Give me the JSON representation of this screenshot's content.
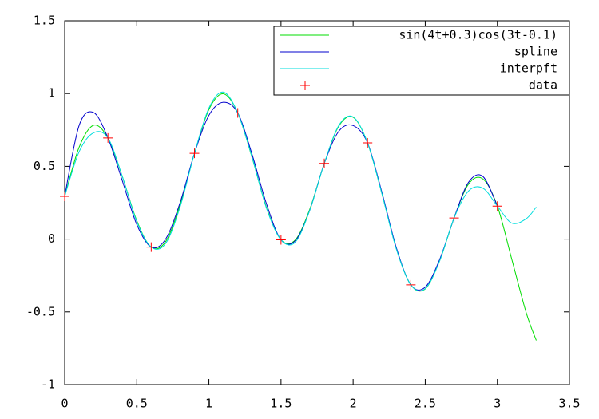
{
  "chart_data": {
    "type": "line",
    "xlim": [
      0,
      3.5
    ],
    "xticks": [
      0,
      0.5,
      1,
      1.5,
      2,
      2.5,
      3,
      3.5
    ],
    "ylim": [
      -1,
      1.5
    ],
    "yticks": [
      -1,
      -0.5,
      0,
      0.5,
      1,
      1.5
    ],
    "legend": "upper right",
    "series": [
      {
        "name": "sin(4t+0.3)cos(3t-0.1)",
        "color": "#00dd00",
        "x": [
          0,
          0.1,
          0.2,
          0.3,
          0.4,
          0.5,
          0.6,
          0.7,
          0.8,
          0.9,
          1,
          1.1,
          1.2,
          1.3,
          1.4,
          1.5,
          1.6,
          1.7,
          1.8,
          1.9,
          2,
          2.1,
          2.2,
          2.3,
          2.4,
          2.5,
          2.6,
          2.7,
          2.8,
          2.9,
          3,
          3.1,
          3.2,
          3.27
        ],
        "values": [
          0.294,
          0.631,
          0.782,
          0.695,
          0.429,
          0.127,
          -0.055,
          -0.017,
          0.234,
          0.589,
          0.89,
          0.998,
          0.867,
          0.558,
          0.215,
          -0.005,
          -0.005,
          0.207,
          0.52,
          0.775,
          0.837,
          0.661,
          0.312,
          -0.065,
          -0.314,
          -0.342,
          -0.148,
          0.145,
          0.378,
          0.413,
          0.227,
          -0.138,
          -0.505,
          -0.696
        ]
      },
      {
        "name": "spline",
        "color": "#0000cc",
        "x": [
          0,
          0.1,
          0.2,
          0.3,
          0.4,
          0.5,
          0.6,
          0.7,
          0.8,
          0.9,
          1,
          1.1,
          1.2,
          1.3,
          1.4,
          1.5,
          1.6,
          1.7,
          1.8,
          1.9,
          2,
          2.1,
          2.2,
          2.3,
          2.4,
          2.5,
          2.6,
          2.7,
          2.8,
          2.9,
          3
        ],
        "values": [
          0.294,
          0.78,
          0.87,
          0.695,
          0.4,
          0.1,
          -0.055,
          0,
          0.25,
          0.589,
          0.85,
          0.94,
          0.867,
          0.58,
          0.24,
          -0.005,
          -0.01,
          0.2,
          0.52,
          0.74,
          0.78,
          0.661,
          0.32,
          -0.06,
          -0.314,
          -0.33,
          -0.14,
          0.145,
          0.39,
          0.43,
          0.227
        ]
      },
      {
        "name": "interpft",
        "color": "#00dddd",
        "x": [
          0,
          0.1,
          0.2,
          0.3,
          0.4,
          0.5,
          0.6,
          0.7,
          0.8,
          0.9,
          1,
          1.1,
          1.2,
          1.3,
          1.4,
          1.5,
          1.6,
          1.7,
          1.8,
          1.9,
          2,
          2.1,
          2.2,
          2.3,
          2.4,
          2.5,
          2.6,
          2.7,
          2.8,
          2.9,
          3,
          3.1,
          3.2,
          3.27
        ],
        "values": [
          0.294,
          0.6,
          0.73,
          0.695,
          0.43,
          0.12,
          -0.055,
          -0.03,
          0.22,
          0.589,
          0.9,
          1.01,
          0.867,
          0.56,
          0.21,
          -0.005,
          -0.02,
          0.2,
          0.52,
          0.78,
          0.84,
          0.661,
          0.31,
          -0.07,
          -0.314,
          -0.34,
          -0.15,
          0.145,
          0.33,
          0.35,
          0.227,
          0.11,
          0.14,
          0.22
        ]
      },
      {
        "name": "data",
        "color": "#ff0000",
        "marker": "+",
        "x": [
          0,
          0.3,
          0.6,
          0.9,
          1.2,
          1.5,
          1.8,
          2.1,
          2.4,
          2.7,
          3
        ],
        "values": [
          0.294,
          0.695,
          -0.055,
          0.589,
          0.867,
          -0.005,
          0.52,
          0.661,
          -0.314,
          0.145,
          0.227
        ]
      }
    ]
  }
}
